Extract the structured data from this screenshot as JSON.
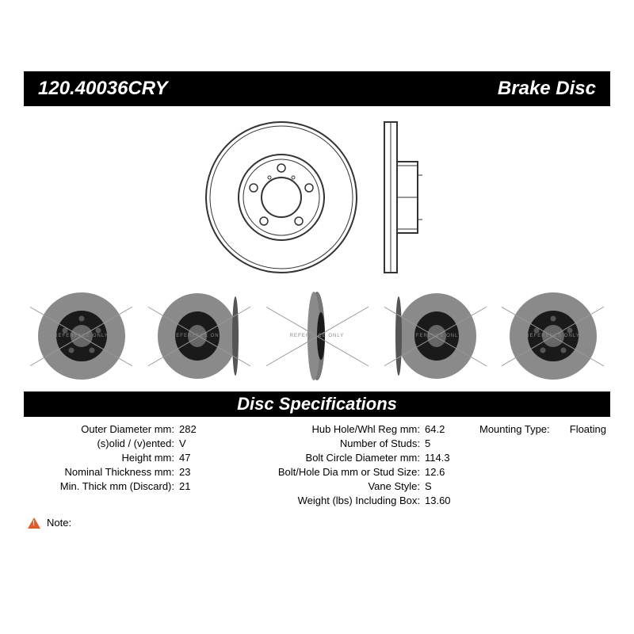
{
  "header": {
    "part_number": "120.40036CRY",
    "product_type": "Brake Disc"
  },
  "diagram": {
    "outer_color": "#333333",
    "bg": "#ffffff"
  },
  "thumbnails": {
    "watermark": "REFERENCE ONLY",
    "rotor_face_color": "#8a8a8a",
    "hub_color": "#1a1a1a",
    "x_color": "#999999"
  },
  "section_title": "Disc Specifications",
  "specs": {
    "left": [
      {
        "label": "Outer Diameter mm:",
        "value": "282"
      },
      {
        "label": "(s)olid / (v)ented:",
        "value": "V"
      },
      {
        "label": "Height mm:",
        "value": "47"
      },
      {
        "label": "Nominal Thickness mm:",
        "value": "23"
      },
      {
        "label": "Min. Thick mm (Discard):",
        "value": "21"
      }
    ],
    "mid": [
      {
        "label": "Hub Hole/Whl Reg mm:",
        "value": "64.2"
      },
      {
        "label": "Number of Studs:",
        "value": "5"
      },
      {
        "label": "Bolt Circle Diameter mm:",
        "value": "114.3"
      },
      {
        "label": "Bolt/Hole Dia mm or Stud Size:",
        "value": "12.6"
      },
      {
        "label": "Vane Style:",
        "value": "S"
      },
      {
        "label": "Weight (lbs) Including Box:",
        "value": "13.60"
      }
    ],
    "right": [
      {
        "label": "Mounting Type:",
        "value": "Floating"
      }
    ]
  },
  "note_label": "Note:"
}
